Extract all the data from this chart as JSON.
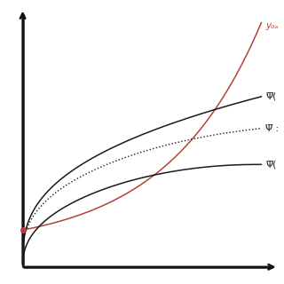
{
  "background_color": "#ffffff",
  "label_y0": "y₀ₐ",
  "label_psi_upper": "Ψ̅(",
  "label_psi_mid": "Ψ̅ :",
  "label_psi_lower": "Ψ̅(",
  "label_color_red": "#b5413a",
  "label_color_black": "#1a1a1a",
  "axis_color": "#111111",
  "red_dot_color": "#b5413a",
  "red_dot_size": 4
}
